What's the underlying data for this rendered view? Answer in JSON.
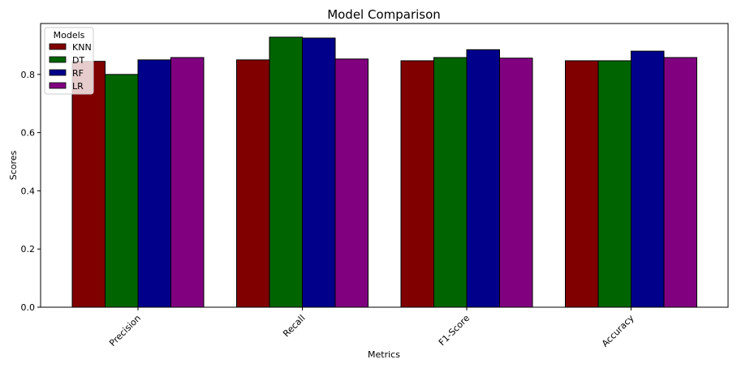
{
  "chart_data": {
    "type": "bar",
    "title": "Model Comparison",
    "xlabel": "Metrics",
    "ylabel": "Scores",
    "categories": [
      "Precision",
      "Recall",
      "F1-Score",
      "Accuracy"
    ],
    "series": [
      {
        "name": "KNN",
        "values": [
          0.845,
          0.85,
          0.847,
          0.847
        ],
        "color": "#800000"
      },
      {
        "name": "DT",
        "values": [
          0.8,
          0.928,
          0.858,
          0.847
        ],
        "color": "#006400"
      },
      {
        "name": "RF",
        "values": [
          0.85,
          0.925,
          0.885,
          0.88
        ],
        "color": "#00008b"
      },
      {
        "name": "LR",
        "values": [
          0.858,
          0.853,
          0.856,
          0.858
        ],
        "color": "#800080"
      }
    ],
    "ylim": [
      0,
      0.975
    ],
    "yticks": [
      0.0,
      0.2,
      0.4,
      0.6,
      0.8
    ],
    "ytick_labels": [
      "0.0",
      "0.2",
      "0.4",
      "0.6",
      "0.8"
    ],
    "grid": false,
    "legend": {
      "title": "Models",
      "placement": "top-left"
    },
    "xtick_rotation": 45
  }
}
